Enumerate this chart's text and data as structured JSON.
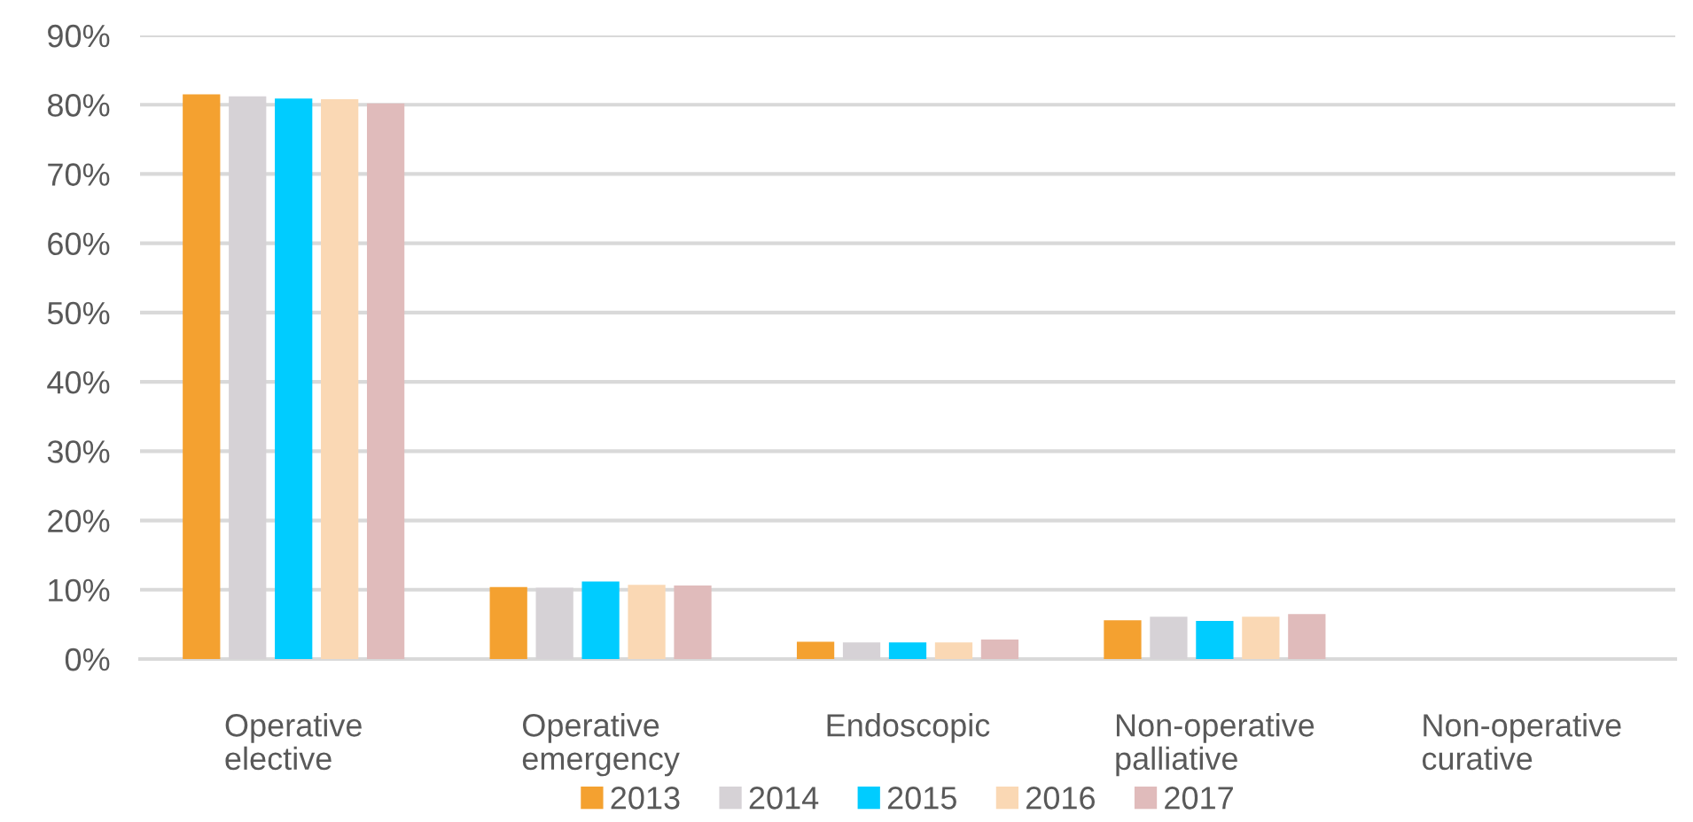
{
  "chart_data": {
    "type": "bar",
    "categories": [
      "Operative elective",
      "Operative emergency",
      "Endoscopic",
      "Non-operative palliative",
      "Non-operative curative"
    ],
    "series": [
      {
        "name": "2013",
        "color": "#f4a130",
        "values": [
          81.5,
          10.4,
          2.5,
          5.6,
          0
        ]
      },
      {
        "name": "2014",
        "color": "#d6d2d6",
        "values": [
          81.2,
          10.3,
          2.4,
          6.1,
          0
        ]
      },
      {
        "name": "2015",
        "color": "#00ccff",
        "values": [
          80.9,
          11.2,
          2.4,
          5.5,
          0
        ]
      },
      {
        "name": "2016",
        "color": "#fad8b4",
        "values": [
          80.8,
          10.7,
          2.4,
          6.1,
          0
        ]
      },
      {
        "name": "2017",
        "color": "#e0bbbb",
        "values": [
          80.2,
          10.6,
          2.8,
          6.5,
          0
        ]
      }
    ],
    "ylim": [
      0,
      90
    ],
    "yticks": [
      {
        "value": 0,
        "label": "0%"
      },
      {
        "value": 10,
        "label": "10%"
      },
      {
        "value": 20,
        "label": "20%"
      },
      {
        "value": 30,
        "label": "30%"
      },
      {
        "value": 40,
        "label": "40%"
      },
      {
        "value": 50,
        "label": "50%"
      },
      {
        "value": 60,
        "label": "60%"
      },
      {
        "value": 70,
        "label": "70%"
      },
      {
        "value": 80,
        "label": "80%"
      },
      {
        "value": 90,
        "label": "90%"
      }
    ],
    "grid": "y",
    "legend": "bottom"
  }
}
